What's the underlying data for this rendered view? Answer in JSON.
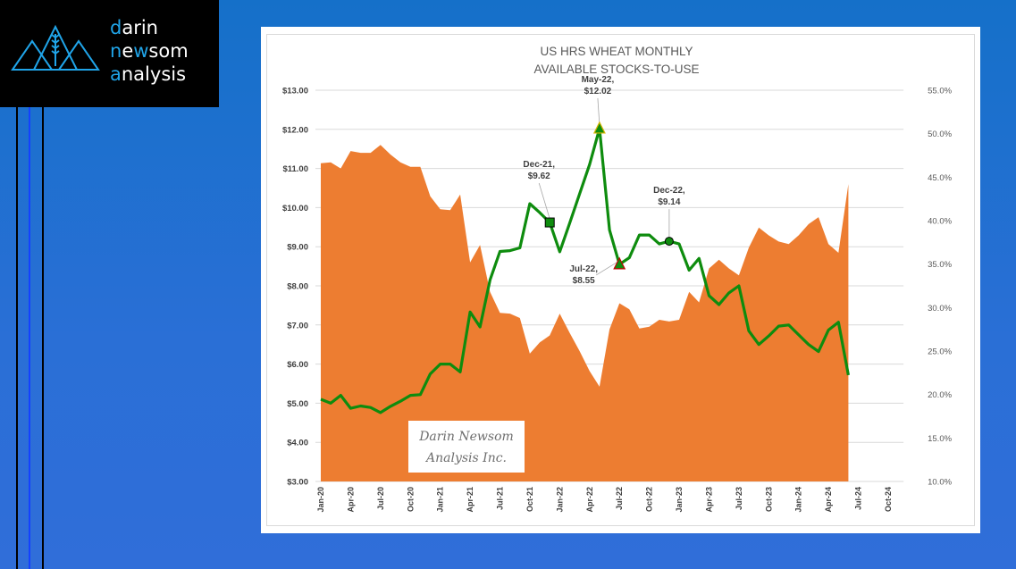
{
  "logo": {
    "line1_hl": "d",
    "line1": "arin",
    "line2_hl": "n",
    "line2_a": "e",
    "line2_hl2": "w",
    "line2_b": "som",
    "line3_hl": "a",
    "line3": "nalysis"
  },
  "colors": {
    "area": "#ed7d31",
    "line": "#0e8c0e",
    "accent_logo": "#20a4e8",
    "background": "#1c72d0"
  },
  "chart_data": {
    "type": "area+line",
    "title": [
      "US HRS WHEAT MONTHLY",
      "AVAILABLE STOCKS-TO-USE"
    ],
    "watermark": [
      "Darin Newsom",
      "Analysis Inc."
    ],
    "x_start": "Jan-20",
    "x_ticks": [
      "Jan-20",
      "Apr-20",
      "Jul-20",
      "Oct-20",
      "Jan-21",
      "Apr-21",
      "Jul-21",
      "Oct-21",
      "Jan-22",
      "Apr-22",
      "Jul-22",
      "Oct-22",
      "Jan-23",
      "Apr-23",
      "Jul-23",
      "Oct-23",
      "Jan-24",
      "Apr-24",
      "Jul-24",
      "Oct-24"
    ],
    "months_total": 58,
    "y_left": {
      "min": 3,
      "max": 13,
      "step": 1,
      "ticks": [
        "$3.00",
        "$4.00",
        "$5.00",
        "$6.00",
        "$7.00",
        "$8.00",
        "$9.00",
        "$10.00",
        "$11.00",
        "$12.00",
        "$13.00"
      ]
    },
    "y_right": {
      "min": 10,
      "max": 55,
      "step": 5,
      "ticks": [
        "10.0%",
        "15.0%",
        "20.0%",
        "25.0%",
        "30.0%",
        "35.0%",
        "40.0%",
        "45.0%",
        "50.0%",
        "55.0%"
      ]
    },
    "grid": true,
    "series": [
      {
        "name": "Available stocks-to-use (%)",
        "axis": "right",
        "type": "area",
        "values": [
          46.6,
          46.7,
          46.0,
          48.0,
          47.8,
          47.8,
          48.7,
          47.6,
          46.7,
          46.2,
          46.2,
          42.8,
          41.3,
          41.2,
          43.0,
          35.2,
          37.2,
          31.8,
          29.4,
          29.3,
          28.8,
          24.7,
          26.0,
          26.8,
          29.3,
          27.1,
          25.0,
          22.7,
          20.9,
          27.5,
          30.5,
          29.8,
          27.6,
          27.8,
          28.6,
          28.4,
          28.6,
          31.8,
          30.6,
          34.5,
          35.5,
          34.5,
          33.7,
          36.9,
          39.2,
          38.3,
          37.6,
          37.3,
          38.3,
          39.6,
          40.4,
          37.3,
          36.3,
          44.2
        ]
      },
      {
        "name": "HRS wheat price ($/bu)",
        "axis": "left",
        "type": "line",
        "values": [
          5.1,
          5.0,
          5.2,
          4.87,
          4.93,
          4.89,
          4.76,
          4.92,
          5.05,
          5.2,
          5.22,
          5.75,
          6.0,
          6.0,
          5.8,
          7.33,
          6.95,
          8.15,
          8.88,
          8.9,
          8.97,
          10.1,
          9.87,
          9.62,
          8.87,
          9.6,
          10.35,
          11.1,
          12.02,
          9.43,
          8.55,
          8.72,
          9.3,
          9.3,
          9.07,
          9.14,
          9.07,
          8.4,
          8.7,
          7.75,
          7.52,
          7.82,
          8.0,
          6.85,
          6.5,
          6.72,
          6.97,
          7.0,
          6.75,
          6.5,
          6.32,
          6.87,
          7.07,
          5.72
        ]
      }
    ],
    "annotations": [
      {
        "label": [
          "May-22,",
          "$12.02"
        ],
        "index": 28,
        "marker": "triangle-up",
        "border": "#d4b400"
      },
      {
        "label": [
          "Dec-21,",
          "$9.62"
        ],
        "index": 23,
        "marker": "square",
        "border": "#000000"
      },
      {
        "label": [
          "Dec-22,",
          "$9.14"
        ],
        "index": 35,
        "marker": "circle",
        "border": "#000000"
      },
      {
        "label": [
          "Jul-22,",
          "$8.55"
        ],
        "index": 30,
        "marker": "triangle-up",
        "border": "#c00000"
      }
    ]
  }
}
